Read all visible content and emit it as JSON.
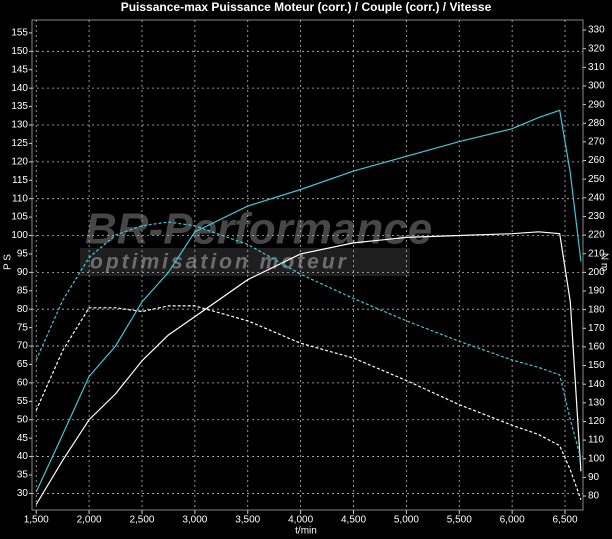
{
  "chart_data": {
    "type": "line",
    "title": "Puissance-max Puissance Moteur (corr.) / Couple (corr.) / Vitesse",
    "xlabel": "t/min",
    "ylabel": "P S",
    "y2label": "N m",
    "watermark": "BR-Performance",
    "watermark_subtitle": "optimisation moteur",
    "x": [
      1500,
      1750,
      2000,
      2250,
      2500,
      2750,
      3000,
      3500,
      4000,
      4500,
      5000,
      5500,
      6000,
      6250,
      6450,
      6550,
      6650
    ],
    "xlim": [
      1460,
      6670
    ],
    "xticks": [
      {
        "value": 1500,
        "label": "1,500"
      },
      {
        "value": 2000,
        "label": "2,000"
      },
      {
        "value": 2500,
        "label": "2,500"
      },
      {
        "value": 3000,
        "label": "3,000"
      },
      {
        "value": 3500,
        "label": "3,500"
      },
      {
        "value": 4000,
        "label": "4,000"
      },
      {
        "value": 4500,
        "label": "4,500"
      },
      {
        "value": 5000,
        "label": "5,000"
      },
      {
        "value": 5500,
        "label": "5,500"
      },
      {
        "value": 6000,
        "label": "6,000"
      },
      {
        "value": 6500,
        "label": "6,500"
      }
    ],
    "ylim": [
      25.5,
      158.5
    ],
    "yticks": [
      30,
      35,
      40,
      45,
      50,
      55,
      60,
      65,
      70,
      75,
      80,
      85,
      90,
      95,
      100,
      105,
      110,
      115,
      120,
      125,
      130,
      135,
      140,
      145,
      150,
      155
    ],
    "y2lim": [
      72.5,
      335.4
    ],
    "y2ticks": [
      80,
      90,
      100,
      110,
      120,
      130,
      140,
      150,
      160,
      170,
      180,
      190,
      200,
      210,
      220,
      230,
      240,
      250,
      260,
      270,
      280,
      290,
      300,
      310,
      320,
      330
    ],
    "grid": true,
    "series": [
      {
        "color": "#3cc8d8",
        "style": "solid",
        "axis": "y",
        "values": [
          30.4,
          46,
          61.8,
          70,
          82,
          90,
          101,
          108,
          112.5,
          117.5,
          121.5,
          125.5,
          129,
          132,
          134,
          117,
          93
        ]
      },
      {
        "color": "#ffffff",
        "style": "solid",
        "axis": "y",
        "values": [
          27,
          39,
          50,
          57,
          66,
          73,
          78,
          88,
          95,
          98,
          99.5,
          100,
          100.5,
          101,
          100.5,
          82,
          36
        ]
      },
      {
        "color": "#3cc8d8",
        "style": "dashed",
        "axis": "y2",
        "values": [
          153,
          185,
          208,
          220,
          225,
          227,
          225,
          215,
          199,
          186,
          174,
          163,
          153,
          149,
          145,
          121,
          100
        ]
      },
      {
        "color": "#ffffff",
        "style": "dashed",
        "axis": "y2",
        "values": [
          126,
          158,
          181,
          181,
          179,
          182,
          182,
          174,
          162,
          154,
          142,
          129,
          118,
          113,
          107,
          94,
          78
        ]
      }
    ]
  }
}
